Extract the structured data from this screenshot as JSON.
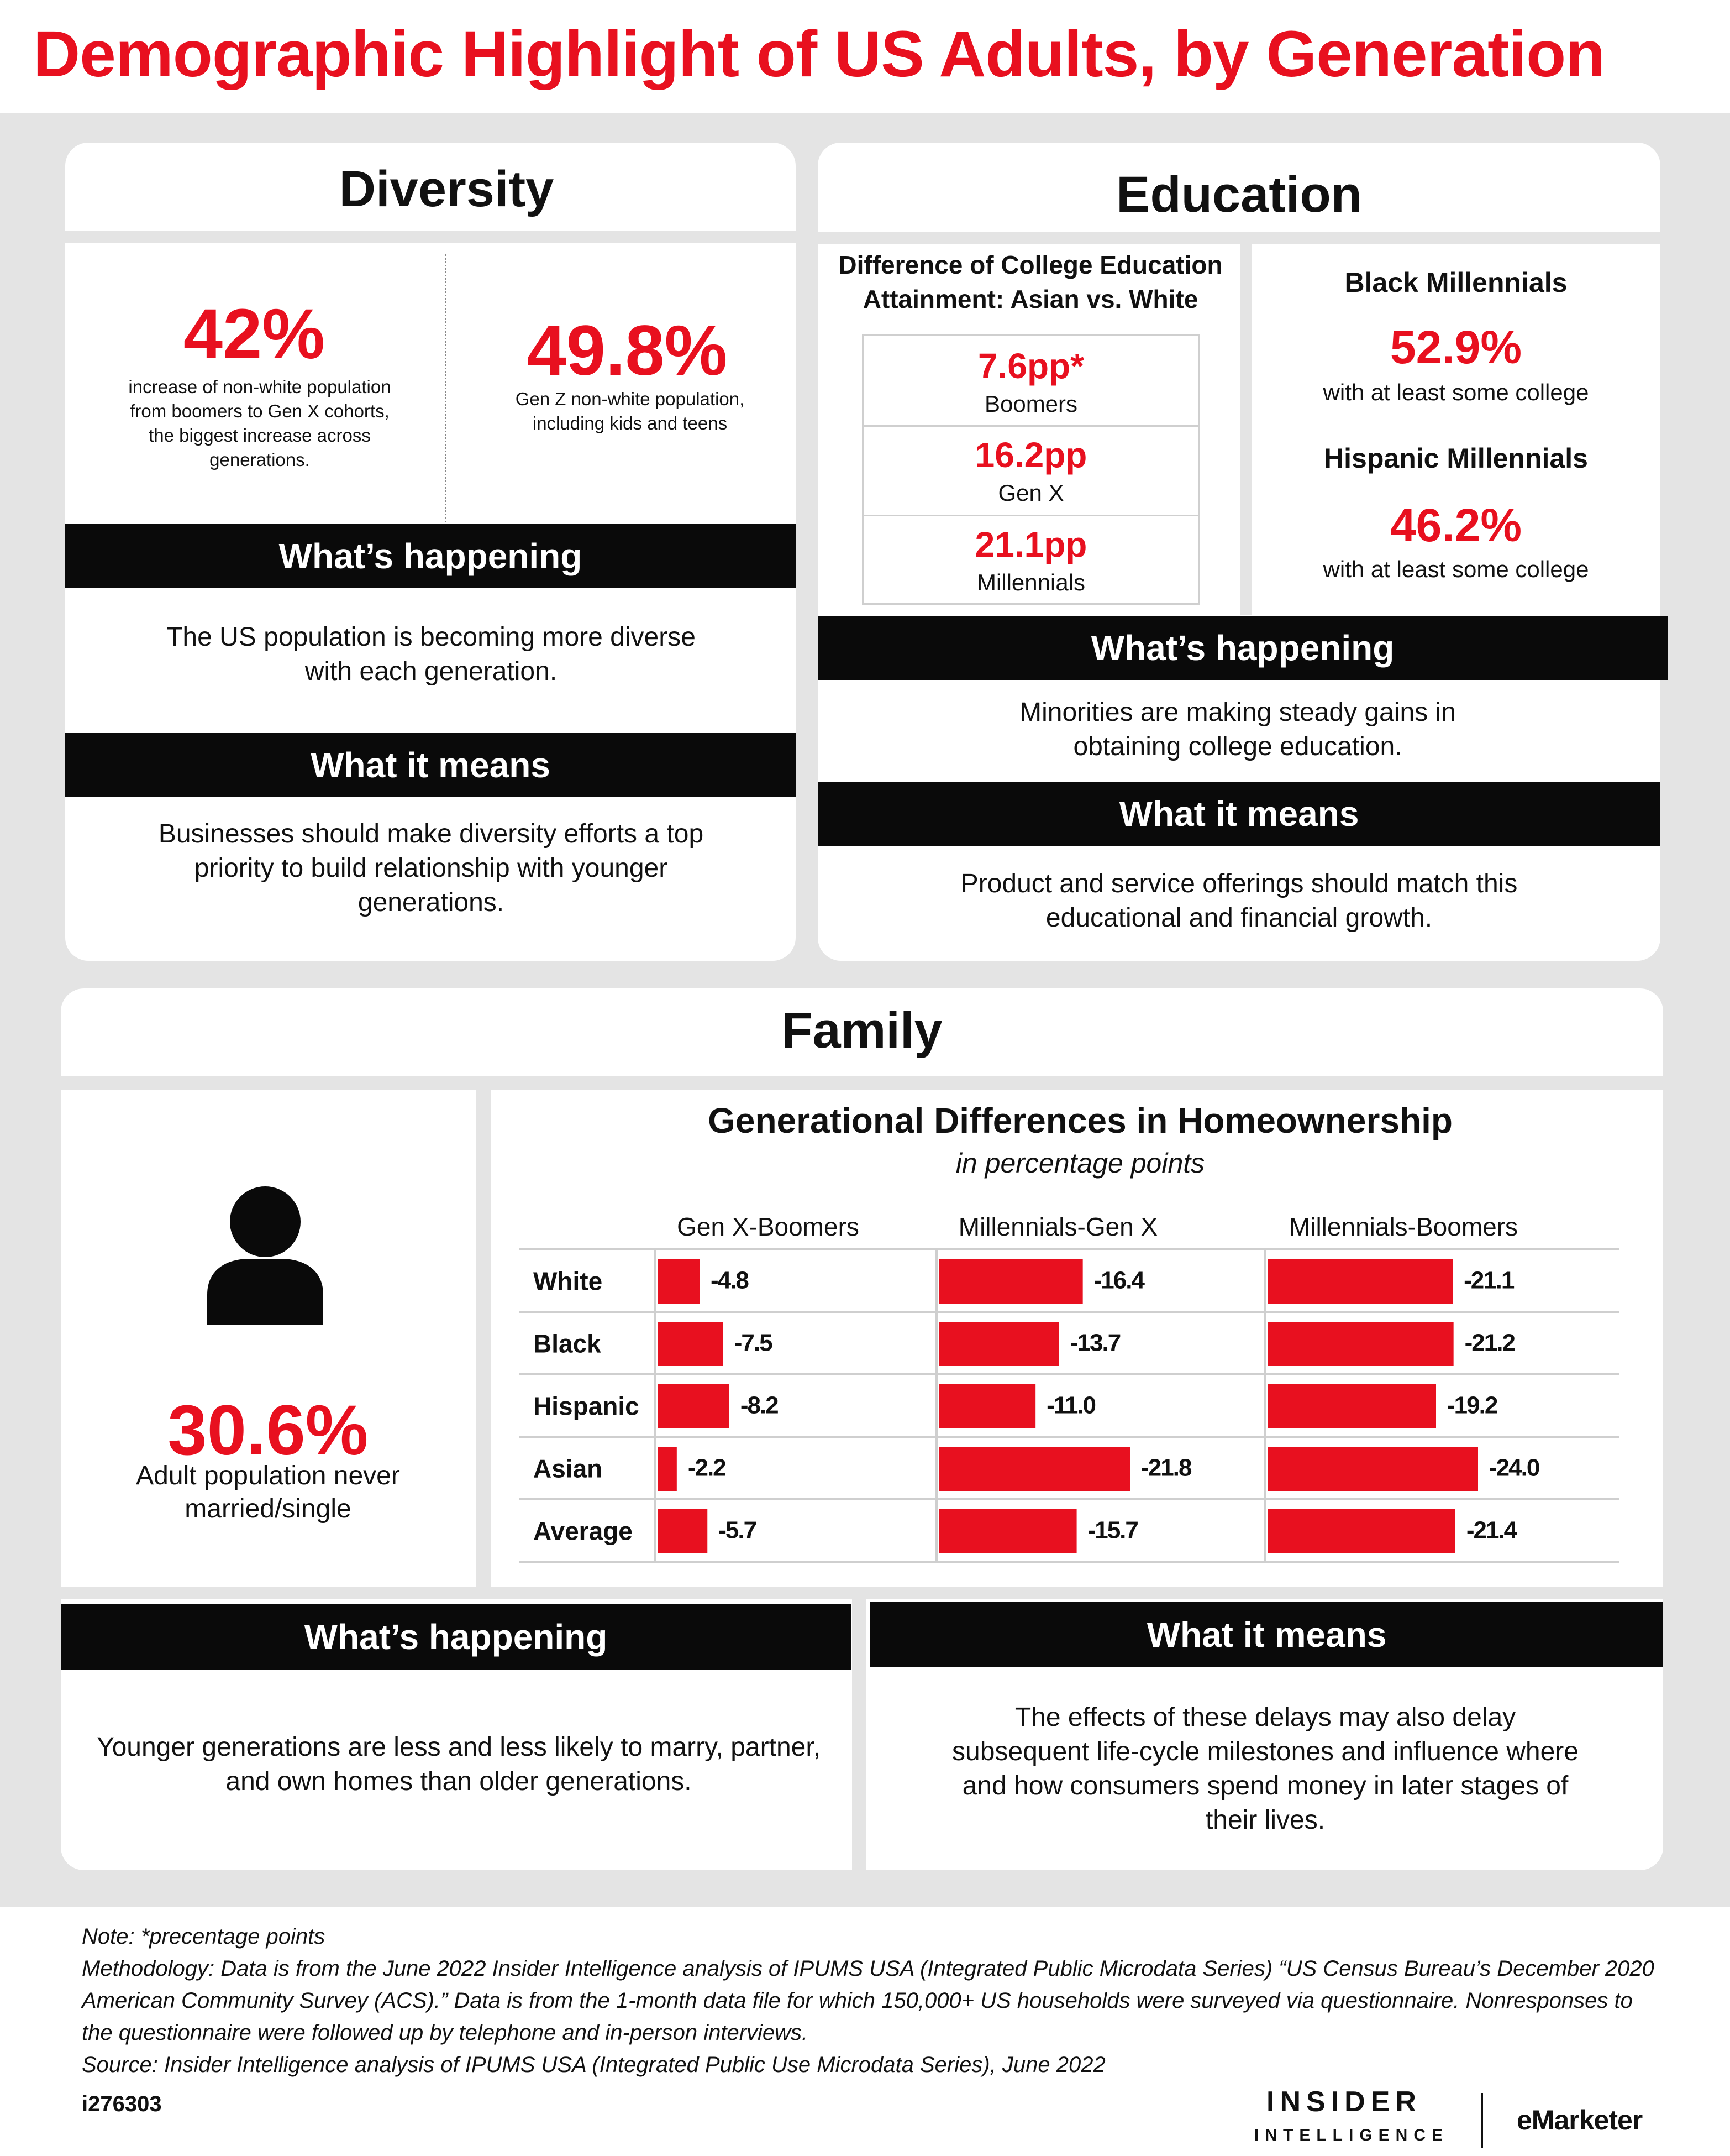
{
  "title": "Demographic Highlight of US Adults, by Generation",
  "diversity": {
    "heading": "Diversity",
    "stat1_value": "42%",
    "stat1_desc": "increase of non-white population from boomers to Gen X cohorts, the biggest increase across generations.",
    "stat2_value": "49.8%",
    "stat2_desc": "Gen Z non-white population, including kids and teens",
    "happening_label": "What’s happening",
    "happening_text": "The US population is becoming more diverse with each generation.",
    "means_label": "What it means",
    "means_text": "Businesses should make diversity efforts a top priority to build relationship with younger generations."
  },
  "education": {
    "heading": "Education",
    "left_title": "Difference of College Education Attainment: Asian vs. White",
    "rows": [
      {
        "value": "7.6pp*",
        "label": "Boomers"
      },
      {
        "value": "16.2pp",
        "label": "Gen X"
      },
      {
        "value": "21.1pp",
        "label": "Millennials"
      }
    ],
    "black_label": "Black Millennials",
    "black_value": "52.9%",
    "black_desc": "with at least some college",
    "hispanic_label": "Hispanic Millennials",
    "hispanic_value": "46.2%",
    "hispanic_desc": "with at least some college",
    "happening_label": "What’s happening",
    "happening_text": "Minorities are making steady gains in obtaining college education.",
    "means_label": "What it means",
    "means_text": "Product and service offerings should match this educational and financial growth."
  },
  "family": {
    "heading": "Family",
    "stat_value": "30.6%",
    "stat_desc": "Adult population never married/single",
    "happening_label": "What’s happening",
    "happening_text": "Younger generations are less and less likely to marry, partner, and own homes than older generations.",
    "means_label": "What it means",
    "means_text": "The effects of these delays may also delay subsequent life-cycle milestones and influence where and how consumers spend money in later stages of their lives.",
    "icon": "person-icon"
  },
  "chart_data": {
    "type": "bar",
    "orientation": "horizontal",
    "title": "Generational Differences in Homeownership",
    "subtitle": "in percentage points",
    "categories": [
      "White",
      "Black",
      "Hispanic",
      "Asian",
      "Average"
    ],
    "series": [
      {
        "name": "Gen X-Boomers",
        "values": [
          -4.8,
          -7.5,
          -8.2,
          -2.2,
          -5.7
        ]
      },
      {
        "name": "Millennials-Gen X",
        "values": [
          -16.4,
          -13.7,
          -11.0,
          -21.8,
          -15.7
        ]
      },
      {
        "name": "Millennials-Boomers",
        "values": [
          -21.1,
          -21.2,
          -19.2,
          -24.0,
          -21.4
        ]
      }
    ],
    "value_labels": [
      [
        "-4.8",
        "-7.5",
        "-8.2",
        "-2.2",
        "-5.7"
      ],
      [
        "-16.4",
        "-13.7",
        "-11.0",
        "-21.8",
        "-15.7"
      ],
      [
        "-21.1",
        "-21.2",
        "-19.2",
        "-24.0",
        "-21.4"
      ]
    ],
    "bar_color": "#e8101f",
    "grid": true
  },
  "footer": {
    "note": "Note: *precentage points",
    "methodology": "Methodology: Data is from the June 2022 Insider Intelligence analysis of IPUMS USA (Integrated Public Microdata Series) “US Census Bureau’s December 2020 American Community Survey (ACS).” Data is from the 1-month data file for which 150,000+ US households were surveyed via questionnaire. Nonresponses to the questionnaire were followed up by telephone and in-person interviews.",
    "source": "Source: Insider Intelligence analysis of IPUMS USA (Integrated Public Use Microdata Series), June 2022",
    "id": "i276303",
    "logo_line1": "INSIDER",
    "logo_line2": "INTELLIGENCE",
    "logo_emarketer": "eMarketer"
  },
  "colors": {
    "accent": "#e8101f",
    "bar": "#0a0a0a",
    "panel": "#e4e4e4"
  }
}
